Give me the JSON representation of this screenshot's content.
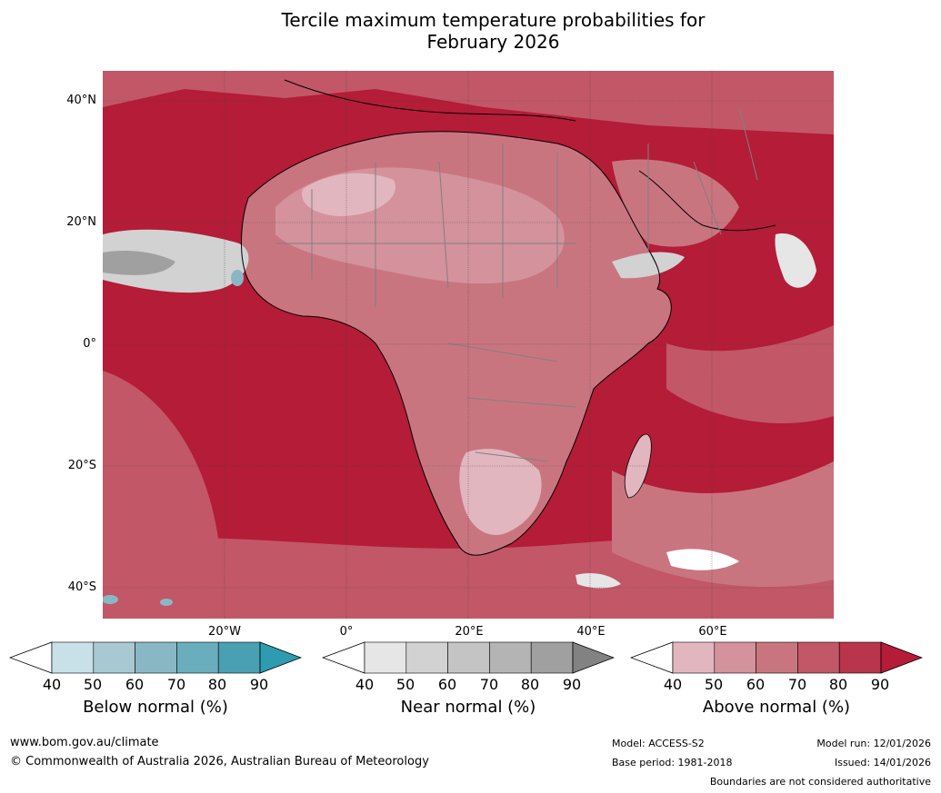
{
  "title_line1": "Tercile maximum temperature probabilities for",
  "title_line2": "February 2026",
  "map": {
    "lat_labels": [
      "40°N",
      "20°N",
      "0°",
      "20°S",
      "40°S"
    ],
    "lon_labels": [
      "20°W",
      "0°",
      "20°E",
      "40°E",
      "60°E"
    ],
    "dominant_color": "#b41c37"
  },
  "colorbars": [
    {
      "title": "Below normal (%)",
      "ticks": [
        "40",
        "50",
        "60",
        "70",
        "80",
        "90"
      ],
      "colors": [
        "#ffffff",
        "#c8e1e8",
        "#a8c9d1",
        "#89b8c4",
        "#6aaebd",
        "#48a0b2"
      ],
      "extend_color": "#2e9bb0"
    },
    {
      "title": "Near normal (%)",
      "ticks": [
        "40",
        "50",
        "60",
        "70",
        "80",
        "90"
      ],
      "colors": [
        "#ffffff",
        "#e6e6e6",
        "#d2d2d2",
        "#c4c4c4",
        "#b4b4b4",
        "#a0a0a0"
      ],
      "extend_color": "#828282"
    },
    {
      "title": "Above normal (%)",
      "ticks": [
        "40",
        "50",
        "60",
        "70",
        "80",
        "90"
      ],
      "colors": [
        "#ffffff",
        "#e2b6bf",
        "#d4929c",
        "#c97580",
        "#c25767",
        "#b8354b"
      ],
      "extend_color": "#b41c37"
    }
  ],
  "footer": {
    "url": "www.bom.gov.au/climate",
    "copyright": "© Commonwealth of Australia 2026, Australian Bureau of Meteorology",
    "model": "Model: ACCESS-S2",
    "base_period": "Base period: 1981-2018",
    "model_run": "Model run: 12/01/2026",
    "issued": "Issued: 14/01/2026",
    "disclaimer": "Boundaries are not considered authoritative"
  }
}
